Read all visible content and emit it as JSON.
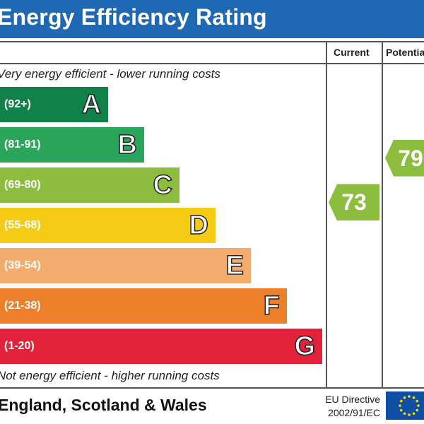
{
  "header": {
    "title": "Energy Efficiency Rating"
  },
  "columns": {
    "current": "Current",
    "potential": "Potential"
  },
  "captions": {
    "top": "Very energy efficient - lower running costs",
    "bottom": "Not energy efficient - higher running costs"
  },
  "chart_data": {
    "type": "bar",
    "title": "Energy Efficiency Rating",
    "bands": [
      {
        "letter": "A",
        "range": "(92+)",
        "min": 92,
        "max": 100,
        "color": "#0f8149"
      },
      {
        "letter": "B",
        "range": "(81-91)",
        "min": 81,
        "max": 91,
        "color": "#2aa55a"
      },
      {
        "letter": "C",
        "range": "(69-80)",
        "min": 69,
        "max": 80,
        "color": "#8dbd3f"
      },
      {
        "letter": "D",
        "range": "(55-68)",
        "min": 55,
        "max": 68,
        "color": "#f5cb16"
      },
      {
        "letter": "E",
        "range": "(39-54)",
        "min": 39,
        "max": 54,
        "color": "#f3ac6b"
      },
      {
        "letter": "F",
        "range": "(21-38)",
        "min": 21,
        "max": 38,
        "color": "#ee7f2a"
      },
      {
        "letter": "G",
        "range": "(1-20)",
        "min": 1,
        "max": 20,
        "color": "#e2213b"
      }
    ],
    "current": {
      "value": 73,
      "label": "73",
      "band": "C",
      "color": "#8dbd3f"
    },
    "potential": {
      "value": 79,
      "label": "79",
      "band": "C",
      "color": "#8dbd3f"
    }
  },
  "footer": {
    "region": "England, Scotland & Wales",
    "directive_line1": "EU Directive",
    "directive_line2": "2002/91/EC"
  },
  "eu_flag": {
    "icon": "eu-flag-icon",
    "stars": 12,
    "color": "#0d4fa3",
    "star_color": "#ffdd00"
  }
}
